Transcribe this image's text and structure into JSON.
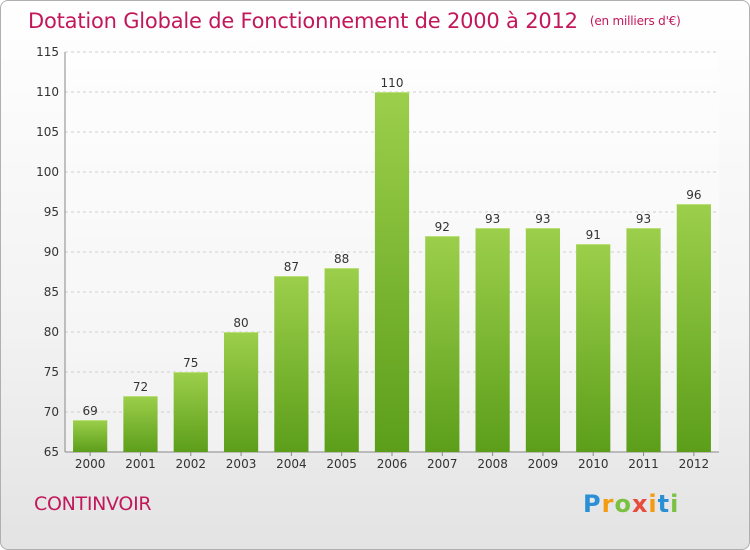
{
  "header": {
    "title": "Dotation Globale de Fonctionnement de 2000 à 2012",
    "subtitle": "(en milliers d'€)"
  },
  "footer": {
    "city": "CONTINVOIR",
    "logo_text": "Proxiti"
  },
  "colors": {
    "title": "#c2185b",
    "bar_top": "#9ccf4b",
    "bar_bottom": "#5c9e1a",
    "grid": "#d0d0d0",
    "axis_text": "#333333"
  },
  "chart_data": {
    "type": "bar",
    "categories": [
      "2000",
      "2001",
      "2002",
      "2003",
      "2004",
      "2005",
      "2006",
      "2007",
      "2008",
      "2009",
      "2010",
      "2011",
      "2012"
    ],
    "values": [
      69,
      72,
      75,
      80,
      87,
      88,
      110,
      92,
      93,
      93,
      91,
      93,
      96
    ],
    "ylim": [
      65,
      115
    ],
    "yticks": [
      65,
      70,
      75,
      80,
      85,
      90,
      95,
      100,
      105,
      110,
      115
    ],
    "grid": "horizontal-dashed",
    "data_labels": true
  }
}
